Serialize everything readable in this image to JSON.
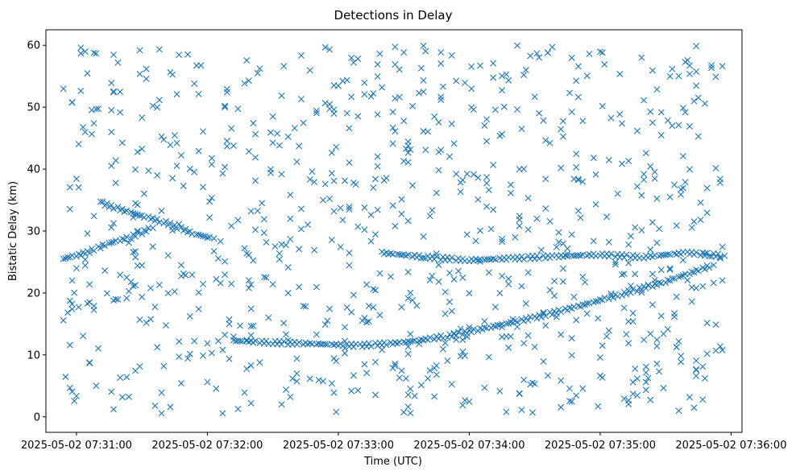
{
  "chart_data": {
    "type": "scatter",
    "title": "Detections in Delay",
    "xlabel": "Time (UTC)",
    "ylabel": "Bistatic Delay (km)",
    "marker": "x",
    "grid": false,
    "color": "#1f77b4",
    "xlim": [
      "2025-05-02 07:30:46",
      "2025-05-02 07:36:05"
    ],
    "ylim": [
      -2.5,
      62.5
    ],
    "x_ticks": [
      "2025-05-02 07:31:00",
      "2025-05-02 07:32:00",
      "2025-05-02 07:33:00",
      "2025-05-02 07:34:00",
      "2025-05-02 07:35:00",
      "2025-05-02 07:36:00"
    ],
    "y_ticks": [
      0,
      10,
      20,
      30,
      40,
      50,
      60
    ],
    "tracks": [
      {
        "x": "2025-05-02 07:30:54",
        "y": 25.5
      },
      {
        "x": "2025-05-02 07:31:05",
        "y": 26.5
      },
      {
        "x": "2025-05-02 07:31:15",
        "y": 28.0
      },
      {
        "x": "2025-05-02 07:31:25",
        "y": 29.0
      },
      {
        "x": "2025-05-02 07:31:35",
        "y": 30.5
      },
      {
        "x": "2025-05-02 07:31:12",
        "y": 34.5
      },
      {
        "x": "2025-05-02 07:31:25",
        "y": 33.0
      },
      {
        "x": "2025-05-02 07:31:40",
        "y": 31.5
      },
      {
        "x": "2025-05-02 07:31:55",
        "y": 29.5
      },
      {
        "x": "2025-05-02 07:32:03",
        "y": 28.8
      },
      {
        "x": "2025-05-02 07:32:12",
        "y": 12.3
      },
      {
        "x": "2025-05-02 07:32:30",
        "y": 12.0
      },
      {
        "x": "2025-05-02 07:32:50",
        "y": 11.8
      },
      {
        "x": "2025-05-02 07:33:10",
        "y": 11.5
      },
      {
        "x": "2025-05-02 07:33:30",
        "y": 12.0
      },
      {
        "x": "2025-05-02 07:33:50",
        "y": 13.0
      },
      {
        "x": "2025-05-02 07:34:10",
        "y": 14.5
      },
      {
        "x": "2025-05-02 07:34:30",
        "y": 16.0
      },
      {
        "x": "2025-05-02 07:34:50",
        "y": 17.8
      },
      {
        "x": "2025-05-02 07:35:10",
        "y": 19.8
      },
      {
        "x": "2025-05-02 07:35:30",
        "y": 21.8
      },
      {
        "x": "2025-05-02 07:35:52",
        "y": 24.5
      },
      {
        "x": "2025-05-02 07:33:20",
        "y": 26.5
      },
      {
        "x": "2025-05-02 07:33:40",
        "y": 25.8
      },
      {
        "x": "2025-05-02 07:34:00",
        "y": 25.3
      },
      {
        "x": "2025-05-02 07:34:20",
        "y": 25.6
      },
      {
        "x": "2025-05-02 07:34:40",
        "y": 25.9
      },
      {
        "x": "2025-05-02 07:35:00",
        "y": 26.2
      },
      {
        "x": "2025-05-02 07:35:20",
        "y": 25.8
      },
      {
        "x": "2025-05-02 07:35:40",
        "y": 26.5
      },
      {
        "x": "2025-05-02 07:35:57",
        "y": 26.0
      }
    ]
  }
}
